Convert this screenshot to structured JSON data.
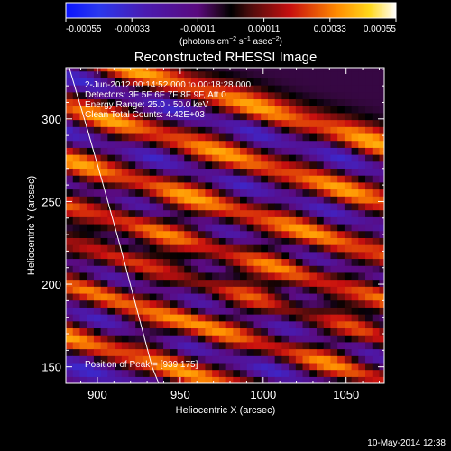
{
  "colors": {
    "background": "#000000",
    "foreground": "#ffffff",
    "limb": "#ffffff"
  },
  "colorbar": {
    "tick_labels": [
      "-0.00055",
      "-0.00033",
      "-0.00011",
      "0.00011",
      "0.00033",
      "0.00055"
    ],
    "tick_values": [
      -0.00055,
      -0.00033,
      -0.00011,
      0.00011,
      0.00033,
      0.00055
    ],
    "range": [
      -0.00055,
      0.00055
    ],
    "colormap": [
      {
        "v": 0.0,
        "c": "#0a14ff"
      },
      {
        "v": 0.1,
        "c": "#2a38ee"
      },
      {
        "v": 0.24,
        "c": "#4a1bb0"
      },
      {
        "v": 0.4,
        "c": "#5a0a7e"
      },
      {
        "v": 0.46,
        "c": "#2a062e"
      },
      {
        "v": 0.5,
        "c": "#000000"
      },
      {
        "v": 0.56,
        "c": "#4e0c0c"
      },
      {
        "v": 0.68,
        "c": "#c80f0f"
      },
      {
        "v": 0.82,
        "c": "#ff8a00"
      },
      {
        "v": 0.92,
        "c": "#ffd81a"
      },
      {
        "v": 1.0,
        "c": "#ffffff"
      }
    ]
  },
  "units": {
    "prefix": "(photons cm",
    "exp1": "−2",
    "mid": " s",
    "exp2": "−1",
    "mid2": " asec",
    "exp3": "−2",
    "suffix": ")"
  },
  "title": "Reconstructed RHESSI Image",
  "annotations": {
    "time_range": "2-Jun-2012 00:14:52.000 to 00:18:28.000",
    "detectors": "Detectors: 3F 5F 6F 7F 8F 9F, Att 0",
    "energy": "Energy Range: 25.0 - 50.0 keV",
    "method": "Clean    Total Counts: 4.42E+03",
    "peak": "Position of Peak = [939,175]"
  },
  "timestamp": "10-May-2014 12:38",
  "chart_data": {
    "type": "heatmap",
    "title": "Reconstructed RHESSI Image",
    "xlabel": "Heliocentric X (arcsec)",
    "ylabel": "Heliocentric Y (arcsec)",
    "xlim": [
      881,
      1073
    ],
    "ylim": [
      140,
      331
    ],
    "xticks": [
      900,
      950,
      1000,
      1050
    ],
    "yticks": [
      150,
      200,
      250,
      300
    ],
    "grid": false,
    "value_range": [
      -0.00055,
      0.00055
    ],
    "peak_position": [
      939,
      175
    ],
    "stripes": {
      "orientation": "diagonal bands descending left to right",
      "slope_arcsec_per_arcsec": -0.3,
      "y_intercept_at_x_881": [
        341,
        307,
        275,
        249,
        227,
        200,
        168
      ],
      "polarity": [
        1,
        1,
        1,
        1,
        1,
        1,
        1
      ]
    },
    "limb_curve": {
      "x": [
        883,
        893,
        903,
        913,
        923,
        933,
        937
      ],
      "y": [
        331,
        297,
        262,
        226,
        188,
        150,
        140
      ]
    }
  }
}
